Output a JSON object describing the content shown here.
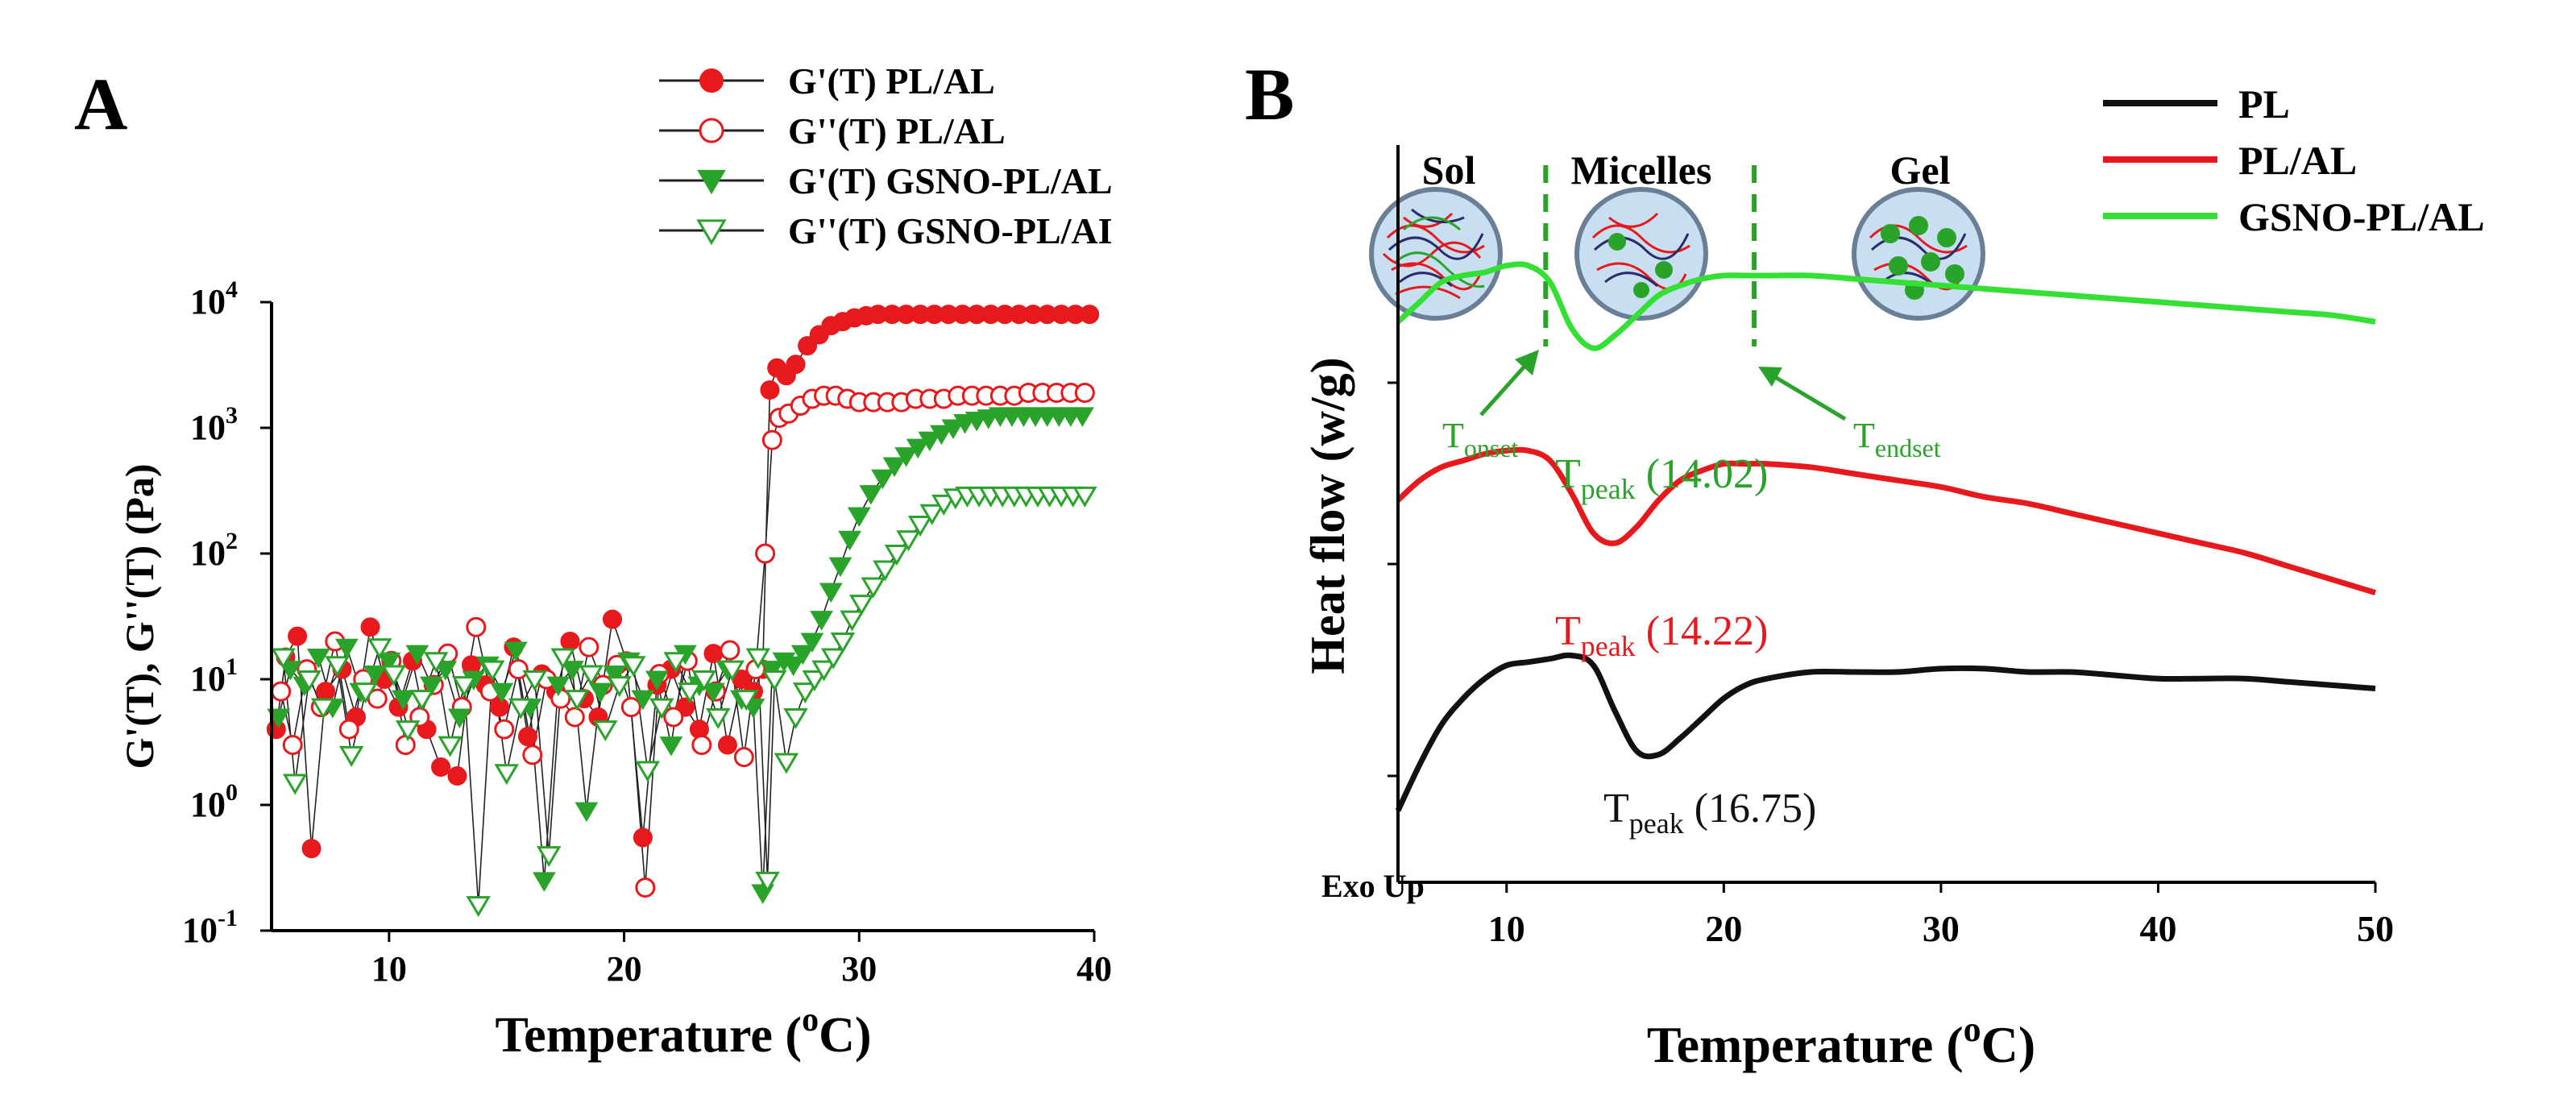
{
  "panels": {
    "A": {
      "letter": "A"
    },
    "B": {
      "letter": "B"
    }
  },
  "chart_data": [
    {
      "id": "panel-a",
      "type": "scatter",
      "title": "",
      "xlabel": "Temperature (°C)",
      "xlabel_main": "Temperature (",
      "xlabel_sup": "o",
      "xlabel_unit": "C)",
      "ylabel": "G'(T), G''(T) (Pa)",
      "yscale": "log",
      "xlim": [
        5,
        40
      ],
      "ylim": [
        0.1,
        10000
      ],
      "xticks": [
        10,
        20,
        30,
        40
      ],
      "yticks": [
        {
          "value": 0.1,
          "base": "10",
          "exp": "-1"
        },
        {
          "value": 1,
          "base": "10",
          "exp": "0"
        },
        {
          "value": 10,
          "base": "10",
          "exp": "1"
        },
        {
          "value": 100,
          "base": "10",
          "exp": "2"
        },
        {
          "value": 1000,
          "base": "10",
          "exp": "3"
        },
        {
          "value": 10000,
          "base": "10",
          "exp": "4"
        }
      ],
      "legend": {
        "position": "top-right"
      },
      "series": [
        {
          "name": "G'(T) PL/AL",
          "color": "#e8191c",
          "marker": "filled-circle",
          "x": [
            5.2,
            5.6,
            6.1,
            6.7,
            7.3,
            8.0,
            8.6,
            9.2,
            9.8,
            10.4,
            11.0,
            11.6,
            12.2,
            12.9,
            13.5,
            14.1,
            14.7,
            15.3,
            15.9,
            16.5,
            17.1,
            17.7,
            18.3,
            18.9,
            19.5,
            20.1,
            20.8,
            21.4,
            22.0,
            22.6,
            23.2,
            23.8,
            24.4,
            25.0,
            25.5,
            25.9,
            26.2,
            26.5,
            26.9,
            27.3,
            27.8,
            28.3,
            28.8,
            29.3,
            29.8,
            30.3,
            30.8,
            31.4,
            32.0,
            32.6,
            33.2,
            33.8,
            34.4,
            35.0,
            35.6,
            36.2,
            36.8,
            37.4,
            38.0,
            38.6,
            39.2,
            39.8
          ],
          "y": [
            4,
            15,
            22,
            0.45,
            8,
            12,
            5,
            26,
            10,
            6,
            14,
            4,
            2,
            1.7,
            13,
            9,
            6,
            18,
            3.5,
            11,
            8,
            20,
            7,
            5,
            30,
            14,
            0.55,
            9,
            12,
            6,
            4,
            16,
            3,
            10,
            8,
            12,
            2000,
            3000,
            2600,
            3200,
            4500,
            5500,
            6500,
            7000,
            7500,
            7800,
            8000,
            8000,
            8000,
            8000,
            8000,
            8000,
            8000,
            8000,
            8000,
            8000,
            8000,
            8000,
            8000,
            8000,
            8000,
            8000
          ]
        },
        {
          "name": "G''(T) PL/AL",
          "color": "#e8191c",
          "marker": "open-circle",
          "x": [
            5.4,
            5.9,
            6.5,
            7.1,
            7.7,
            8.3,
            8.9,
            9.5,
            10.1,
            10.7,
            11.3,
            11.9,
            12.5,
            13.1,
            13.7,
            14.3,
            14.9,
            15.5,
            16.1,
            16.7,
            17.3,
            17.9,
            18.5,
            19.1,
            19.7,
            20.3,
            20.9,
            21.5,
            22.1,
            22.7,
            23.3,
            23.9,
            24.5,
            25.1,
            25.6,
            26.0,
            26.3,
            26.6,
            27.0,
            27.5,
            28.0,
            28.5,
            29.0,
            29.5,
            30.0,
            30.6,
            31.2,
            31.8,
            32.4,
            33.0,
            33.6,
            34.2,
            34.8,
            35.4,
            36.0,
            36.6,
            37.2,
            37.8,
            38.4,
            39.0,
            39.6
          ],
          "y": [
            8,
            3,
            12,
            6,
            20,
            4,
            10,
            7,
            14,
            3,
            5,
            9,
            16,
            6,
            26,
            8,
            4,
            12,
            2.5,
            10,
            7,
            5,
            18,
            9,
            13,
            6,
            0.22,
            11,
            5,
            14,
            3,
            8,
            17,
            2.4,
            12,
            100,
            800,
            1200,
            1300,
            1500,
            1700,
            1800,
            1800,
            1700,
            1600,
            1600,
            1600,
            1600,
            1700,
            1700,
            1700,
            1800,
            1800,
            1800,
            1800,
            1800,
            1900,
            1900,
            1900,
            1900,
            1900
          ]
        },
        {
          "name": "G'(T) GSNO-PL/AL",
          "color": "#2aa32a",
          "marker": "filled-triangle-down",
          "x": [
            5.3,
            5.8,
            6.4,
            7.0,
            7.6,
            8.2,
            8.8,
            9.4,
            10.0,
            10.6,
            11.2,
            11.8,
            12.4,
            13.0,
            13.6,
            14.2,
            14.8,
            15.4,
            16.0,
            16.6,
            17.2,
            17.8,
            18.4,
            19.0,
            19.6,
            20.2,
            20.8,
            21.4,
            22.0,
            22.6,
            23.2,
            23.8,
            24.4,
            25.0,
            25.5,
            25.9,
            26.3,
            26.8,
            27.2,
            27.6,
            28.0,
            28.4,
            28.8,
            29.2,
            29.6,
            30.0,
            30.5,
            31.0,
            31.5,
            32.0,
            32.5,
            33.0,
            33.5,
            34.0,
            34.5,
            35.0,
            35.5,
            36.0,
            36.5,
            37.0,
            37.5,
            38.0,
            38.5,
            39.0,
            39.5
          ],
          "y": [
            5,
            12,
            9,
            15,
            6,
            18,
            8,
            11,
            14,
            7,
            16,
            9,
            12,
            5,
            10,
            13,
            8,
            17,
            6,
            0.25,
            9,
            12,
            0.9,
            8,
            11,
            14,
            7,
            10,
            3,
            16,
            9,
            8,
            12,
            7,
            6,
            0.2,
            12,
            14,
            13,
            16,
            20,
            30,
            50,
            80,
            130,
            200,
            300,
            400,
            500,
            600,
            700,
            800,
            900,
            1000,
            1100,
            1150,
            1200,
            1250,
            1250,
            1250,
            1250,
            1250,
            1250,
            1250,
            1250
          ]
        },
        {
          "name": "G''(T)  GSNO-PL/AI",
          "color": "#2aa32a",
          "marker": "open-triangle-down",
          "x": [
            5.5,
            6.0,
            6.6,
            7.2,
            7.8,
            8.4,
            9.0,
            9.6,
            10.2,
            10.8,
            11.4,
            12.0,
            12.6,
            13.2,
            13.8,
            14.4,
            15.0,
            15.6,
            16.2,
            16.8,
            17.4,
            18.0,
            18.6,
            19.2,
            19.8,
            20.4,
            21.0,
            21.6,
            22.2,
            22.8,
            23.4,
            24.0,
            24.6,
            25.2,
            25.7,
            26.1,
            26.4,
            26.9,
            27.3,
            27.7,
            28.1,
            28.5,
            28.9,
            29.3,
            29.7,
            30.1,
            30.6,
            31.1,
            31.6,
            32.1,
            32.6,
            33.1,
            33.6,
            34.1,
            34.6,
            35.1,
            35.6,
            36.1,
            36.6,
            37.1,
            37.6,
            38.1,
            38.6,
            39.1,
            39.6
          ],
          "y": [
            15,
            1.5,
            10,
            6,
            13,
            2.5,
            8,
            18,
            11,
            4,
            7,
            14,
            3,
            9,
            0.16,
            12,
            1.8,
            6,
            10,
            0.4,
            15,
            7,
            11,
            4,
            9,
            13,
            1.9,
            6,
            14,
            8,
            10,
            5,
            12,
            7,
            15,
            0.25,
            10,
            2.2,
            5,
            8,
            10,
            12,
            15,
            20,
            30,
            40,
            55,
            75,
            100,
            130,
            170,
            210,
            250,
            280,
            290,
            290,
            290,
            290,
            290,
            290,
            290,
            290,
            290,
            290,
            290
          ]
        }
      ]
    },
    {
      "id": "panel-b",
      "type": "line",
      "title": "",
      "xlabel": "Temperature (°C)",
      "xlabel_main": "Temperature (",
      "xlabel_sup": "o",
      "xlabel_unit": "C)",
      "ylabel": "Heat flow (w/g)",
      "exo_label": "Exo Up",
      "xlim": [
        5,
        50
      ],
      "xticks": [
        10,
        20,
        30,
        40,
        50
      ],
      "ylim": [
        0,
        10
      ],
      "legend": {
        "position": "top-right"
      },
      "series": [
        {
          "name": "PL",
          "color": "#111111",
          "x": [
            5,
            6,
            7,
            8,
            9,
            10,
            11,
            12,
            13,
            14,
            15,
            16,
            17,
            18,
            19,
            20,
            21,
            22,
            24,
            26,
            28,
            30,
            32,
            34,
            36,
            38,
            40,
            42,
            44,
            46,
            48,
            50
          ],
          "y": [
            0.9,
            1.6,
            2.2,
            2.6,
            2.9,
            3.1,
            3.15,
            3.2,
            3.25,
            3.1,
            2.4,
            1.8,
            1.75,
            2.0,
            2.3,
            2.6,
            2.8,
            2.9,
            3.0,
            3.0,
            3.0,
            3.05,
            3.05,
            3.0,
            3.0,
            2.95,
            2.9,
            2.9,
            2.9,
            2.85,
            2.8,
            2.75
          ]
        },
        {
          "name": "PL/AL",
          "color": "#e8191c",
          "x": [
            5,
            6,
            7,
            8,
            9,
            10,
            11,
            12,
            13,
            14,
            15,
            16,
            17,
            18,
            19,
            20,
            21,
            22,
            24,
            26,
            28,
            30,
            32,
            34,
            36,
            38,
            40,
            42,
            44,
            46,
            48,
            50
          ],
          "y": [
            5.6,
            5.9,
            6.1,
            6.2,
            6.3,
            6.35,
            6.35,
            6.2,
            5.7,
            5.1,
            4.95,
            5.2,
            5.6,
            5.9,
            6.05,
            6.15,
            6.15,
            6.15,
            6.1,
            6.0,
            5.9,
            5.8,
            5.65,
            5.55,
            5.4,
            5.25,
            5.1,
            4.95,
            4.8,
            4.6,
            4.4,
            4.2
          ]
        },
        {
          "name": "GSNO-PL/AL",
          "color": "#33e033",
          "x": [
            5,
            6,
            7,
            8,
            9,
            10,
            11,
            12,
            13,
            14,
            15,
            16,
            17,
            18,
            19,
            20,
            21,
            22,
            24,
            26,
            28,
            30,
            32,
            34,
            36,
            38,
            40,
            42,
            44,
            46,
            48,
            50
          ],
          "y": [
            8.3,
            8.6,
            8.9,
            9.0,
            9.05,
            9.15,
            9.15,
            8.9,
            8.2,
            7.9,
            8.1,
            8.4,
            8.7,
            8.85,
            8.95,
            9.0,
            9.0,
            9.0,
            9.0,
            8.95,
            8.9,
            8.85,
            8.8,
            8.75,
            8.7,
            8.65,
            8.6,
            8.55,
            8.5,
            8.45,
            8.4,
            8.3
          ]
        }
      ],
      "phase_labels": [
        "Sol",
        "Micelles",
        "Gel"
      ],
      "phase_boundaries": [
        11.8,
        21.4
      ],
      "annotations": [
        {
          "id": "tonset",
          "t": "T",
          "sub": "onset",
          "color": "#2aa32a"
        },
        {
          "id": "tendset",
          "t": "T",
          "sub": "endset",
          "color": "#2aa32a"
        },
        {
          "id": "tpeak-gsno",
          "t": "T",
          "sub": "peak",
          "value": " (14.02)",
          "color": "#2aa32a"
        },
        {
          "id": "tpeak-plal",
          "t": "T",
          "sub": "peak",
          "value": " (14.22)",
          "color": "#e8191c"
        },
        {
          "id": "tpeak-pl",
          "t": "T",
          "sub": "peak",
          "value": " (16.75)",
          "color": "#111111"
        }
      ]
    }
  ]
}
